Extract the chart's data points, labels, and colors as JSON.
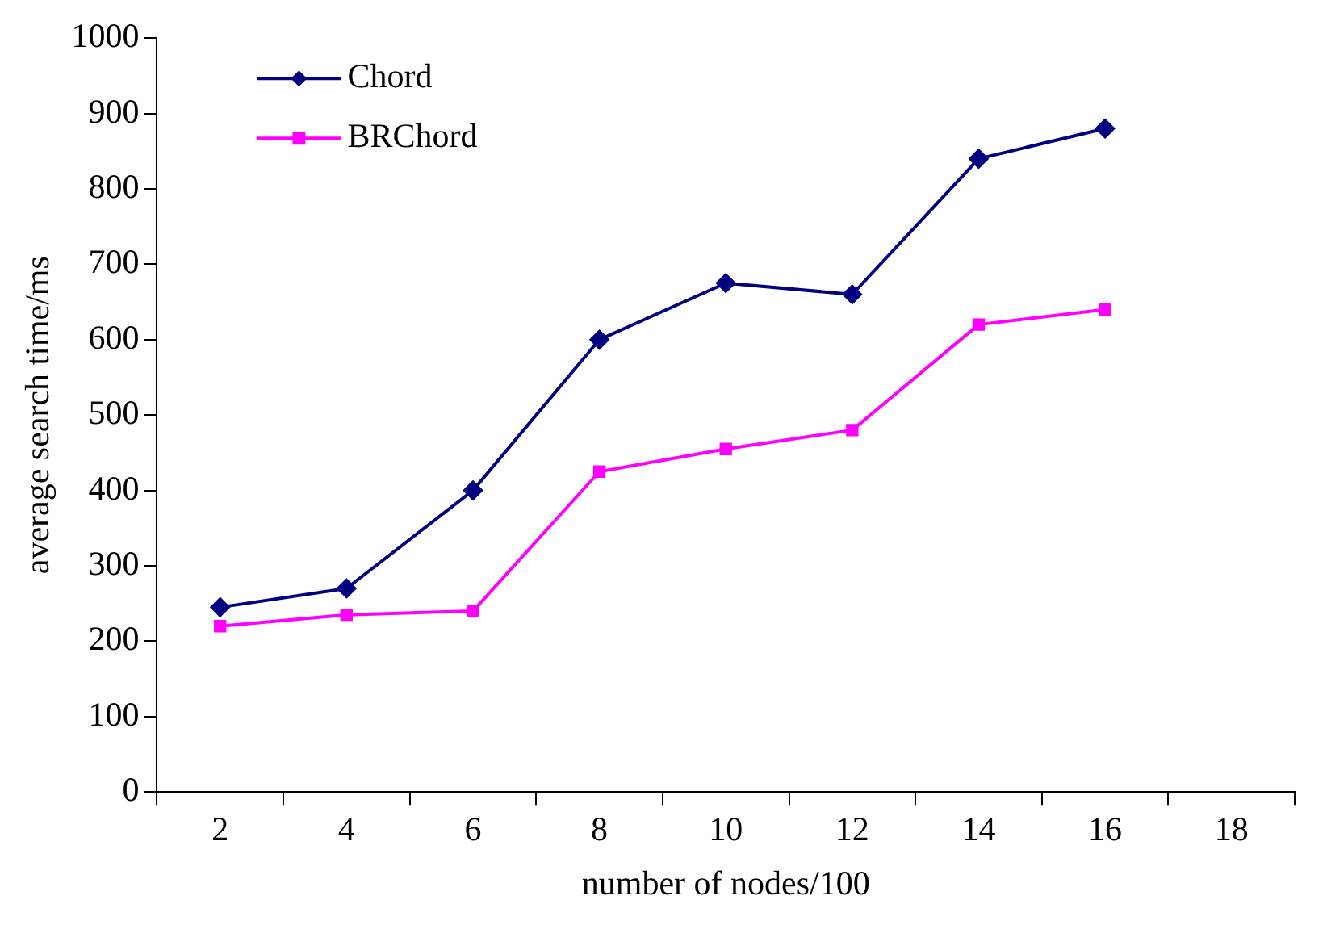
{
  "chart_data": {
    "type": "line",
    "xlabel": "number of nodes/100",
    "ylabel": "average search time/ms",
    "categories": [
      "2",
      "4",
      "6",
      "8",
      "10",
      "12",
      "14",
      "16",
      "18"
    ],
    "series": [
      {
        "name": "Chord",
        "color": "#000080",
        "marker": "diamond",
        "values": [
          245,
          270,
          400,
          600,
          675,
          660,
          840,
          880,
          null
        ]
      },
      {
        "name": "BRChord",
        "color": "#ff00ff",
        "marker": "square",
        "values": [
          220,
          235,
          240,
          425,
          455,
          480,
          620,
          640,
          null
        ]
      }
    ],
    "ylim": [
      0,
      1000
    ],
    "yticks": [
      0,
      100,
      200,
      300,
      400,
      500,
      600,
      700,
      800,
      900,
      1000
    ],
    "grid": false,
    "legend": "top left",
    "line_style": "solid"
  }
}
